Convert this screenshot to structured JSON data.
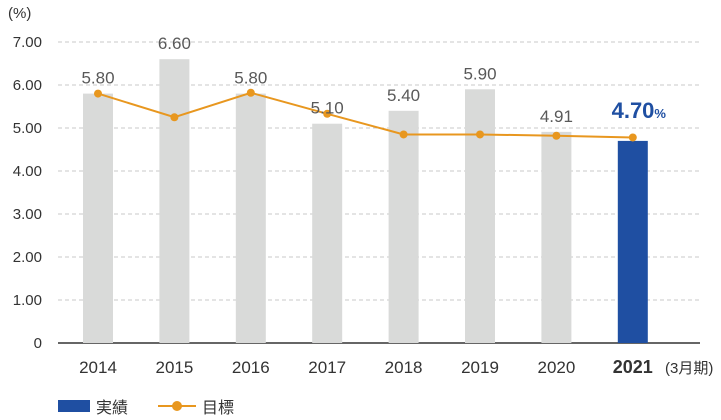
{
  "chart_data": {
    "type": "bar",
    "y_unit_label": "(%)",
    "ylim": [
      0,
      7
    ],
    "yticks": [
      "7.00",
      "6.00",
      "5.00",
      "4.00",
      "3.00",
      "2.00",
      "1.00",
      "0"
    ],
    "categories": [
      "2014",
      "2015",
      "2016",
      "2017",
      "2018",
      "2019",
      "2020",
      "2021"
    ],
    "category_note": "(3月期)",
    "series": [
      {
        "name": "実績",
        "type": "bar",
        "values": [
          5.8,
          6.6,
          5.8,
          5.1,
          5.4,
          5.9,
          4.91,
          4.7
        ],
        "labels": [
          "5.80",
          "6.60",
          "5.80",
          "5.10",
          "5.40",
          "5.90",
          "4.91",
          "4.70"
        ]
      },
      {
        "name": "目標",
        "type": "line",
        "values": [
          5.8,
          5.25,
          5.82,
          5.33,
          4.85,
          4.85,
          4.82,
          4.78
        ]
      }
    ],
    "highlight": {
      "index": 7,
      "label": "4.70",
      "unit": "%"
    }
  },
  "colors": {
    "bar": "#d9dad9",
    "highlight": "#1f4fa2",
    "line": "#e8971f",
    "grid": "#c8c8c8",
    "axis": "#333333"
  }
}
